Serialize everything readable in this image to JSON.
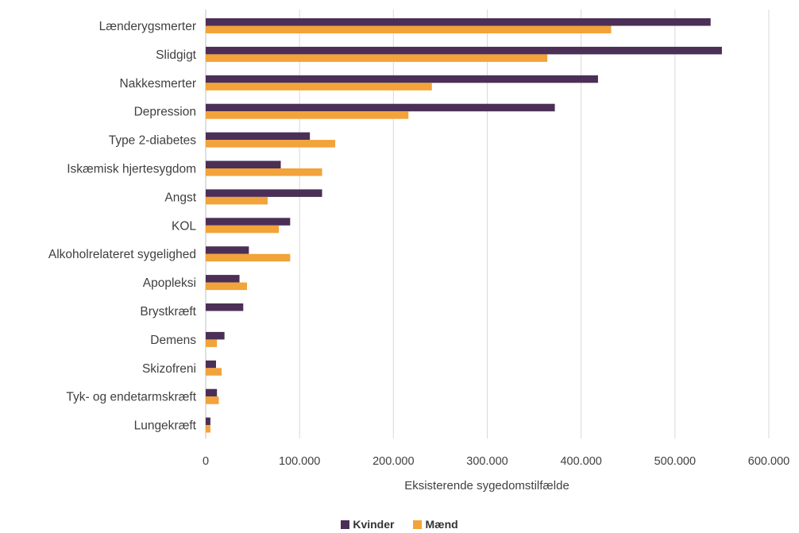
{
  "chart_data": {
    "type": "bar",
    "orientation": "horizontal",
    "title": "",
    "xlabel": "Eksisterende sygedomstilfælde",
    "ylabel": "",
    "xlim": [
      0,
      600000
    ],
    "xticks": [
      0,
      100000,
      200000,
      300000,
      400000,
      500000,
      600000
    ],
    "xtick_labels": [
      "0",
      "100.000",
      "200.000",
      "300.000",
      "400.000",
      "500.000",
      "600.000"
    ],
    "grid": "vertical",
    "legend_position": "bottom",
    "categories": [
      "Lænderygsmerter",
      "Slidgigt",
      "Nakkesmerter",
      "Depression",
      "Type 2-diabetes",
      "Iskæmisk hjertesygdom",
      "Angst",
      "KOL",
      "Alkoholrelateret sygelighed",
      "Apopleksi",
      "Brystkræft",
      "Demens",
      "Skizofreni",
      "Tyk- og endetarmskræft",
      "Lungekræft"
    ],
    "series": [
      {
        "name": "Kvinder",
        "color": "#4b2f57",
        "values": [
          538000,
          550000,
          418000,
          372000,
          111000,
          80000,
          124000,
          90000,
          46000,
          36000,
          40000,
          20000,
          11000,
          12000,
          5000
        ]
      },
      {
        "name": "Mænd",
        "color": "#f2a33a",
        "values": [
          432000,
          364000,
          241000,
          216000,
          138000,
          124000,
          66000,
          78000,
          90000,
          44000,
          0,
          12000,
          17000,
          14000,
          5000
        ]
      }
    ]
  }
}
